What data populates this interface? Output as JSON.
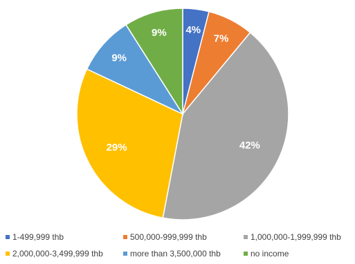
{
  "chart_data": {
    "type": "pie",
    "slices": [
      {
        "label": "1-499,999 thb",
        "value": 4,
        "display": "4%",
        "color": "#4472C4"
      },
      {
        "label": "500,000-999,999 thb",
        "value": 7,
        "display": "7%",
        "color": "#ED7D31"
      },
      {
        "label": "1,000,000-1,999,999 thb",
        "value": 42,
        "display": "42%",
        "color": "#A5A5A5"
      },
      {
        "label": "2,000,000-3,499,999 thb",
        "value": 29,
        "display": "29%",
        "color": "#FFC000"
      },
      {
        "label": "more than 3,500,000 thb",
        "value": 9,
        "display": "9%",
        "color": "#5B9BD5"
      },
      {
        "label": "no income",
        "value": 9,
        "display": "9%",
        "color": "#70AD47"
      }
    ],
    "start_angle_deg": 0,
    "direction": "clockwise",
    "legend_position": "bottom"
  }
}
